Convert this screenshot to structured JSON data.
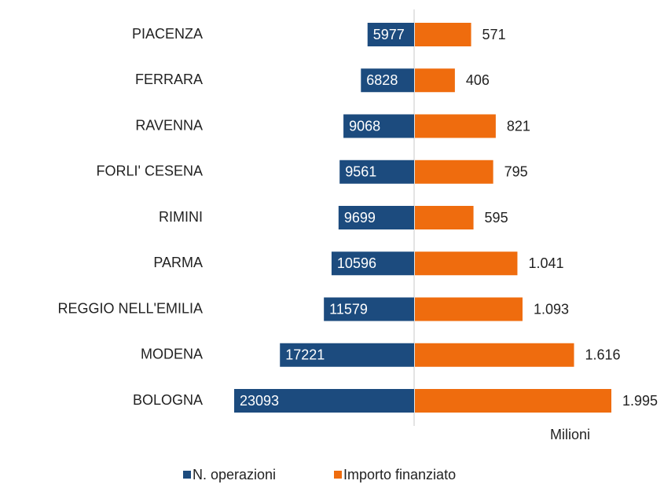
{
  "chart_data": {
    "type": "diverging-bar",
    "categories": [
      "PIACENZA",
      "FERRARA",
      "RAVENNA",
      "FORLI' CESENA",
      "RIMINI",
      "PARMA",
      "REGGIO NELL'EMILIA",
      "MODENA",
      "BOLOGNA"
    ],
    "series": [
      {
        "name": "N. operazioni",
        "color": "#1c4b7e",
        "values": [
          5977,
          6828,
          9068,
          9561,
          9699,
          10596,
          11579,
          17221,
          23093
        ]
      },
      {
        "name": "Importo finanziato",
        "color": "#ef6c0e",
        "values": [
          571,
          406,
          821,
          795,
          595,
          1041,
          1093,
          1616,
          1995
        ],
        "value_labels": [
          "571",
          "406",
          "821",
          "795",
          "595",
          "1.041",
          "1.093",
          "1.616",
          "1.995"
        ]
      }
    ],
    "annotation": "Milioni",
    "legend": "bottom"
  }
}
